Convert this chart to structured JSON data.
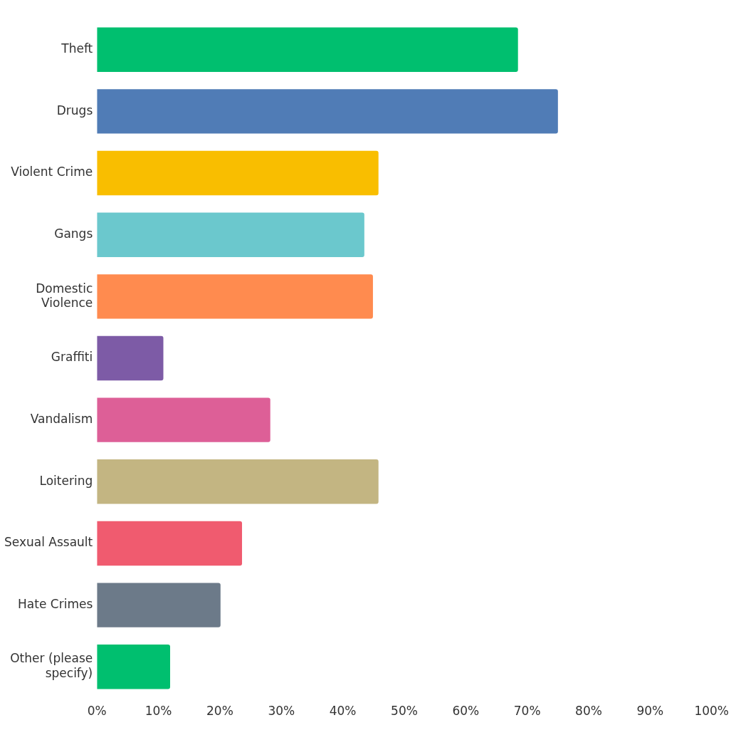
{
  "chart_data": {
    "type": "bar",
    "orientation": "horizontal",
    "categories": [
      "Theft",
      "Drugs",
      "Violent Crime",
      "Gangs",
      "Domestic Violence",
      "Graffiti",
      "Vandalism",
      "Loitering",
      "Sexual Assault",
      "Hate Crimes",
      "Other (please specify)"
    ],
    "values": [
      68.5,
      75,
      45.8,
      43.5,
      44.9,
      10.8,
      28.2,
      45.8,
      23.6,
      20.1,
      11.9
    ],
    "colors": [
      "#00bf6f",
      "#507cb6",
      "#f9be00",
      "#6bc8cd",
      "#ff8b4f",
      "#7d5ba6",
      "#dd5f97",
      "#c3b582",
      "#f05b6f",
      "#6c7a89",
      "#00bf6f"
    ],
    "xlim": [
      0,
      100
    ],
    "xticks": [
      {
        "value": 0,
        "label": "0%"
      },
      {
        "value": 10,
        "label": "10%"
      },
      {
        "value": 20,
        "label": "20%"
      },
      {
        "value": 30,
        "label": "30%"
      },
      {
        "value": 40,
        "label": "40%"
      },
      {
        "value": 50,
        "label": "50%"
      },
      {
        "value": 60,
        "label": "60%"
      },
      {
        "value": 70,
        "label": "70%"
      },
      {
        "value": 80,
        "label": "80%"
      },
      {
        "value": 90,
        "label": "90%"
      },
      {
        "value": 100,
        "label": "100%"
      }
    ],
    "grid": false,
    "legend": false
  }
}
